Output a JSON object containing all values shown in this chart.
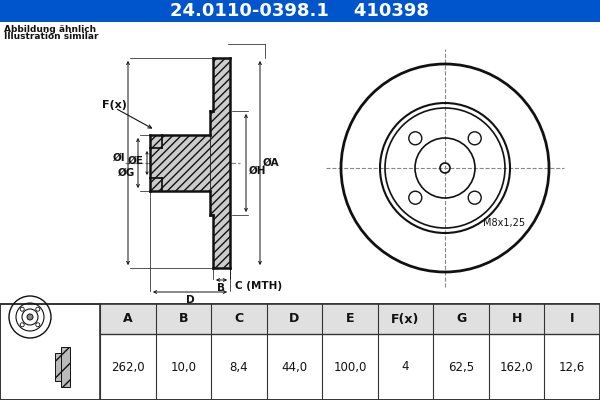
{
  "title_part": "24.0110-0398.1",
  "title_code": "410398",
  "title_bg": "#0055cc",
  "title_fg": "#ffffff",
  "subtitle1": "Abbildung ähnlich",
  "subtitle2": "Illustration similar",
  "thread_note": "M8x1,25",
  "table_headers": [
    "A",
    "B",
    "C",
    "D",
    "E",
    "F(x)",
    "G",
    "H",
    "I"
  ],
  "table_values": [
    "262,0",
    "10,0",
    "8,4",
    "44,0",
    "100,0",
    "4",
    "62,5",
    "162,0",
    "12,6"
  ],
  "bg_color": "#ffffff",
  "dc": "#111111",
  "dim_color": "#111111",
  "center_line_color": "#888888",
  "hatch_fc": "#cccccc",
  "table_header_bg": "#e0e0e0",
  "table_border": "#333333",
  "crosshair_color": "#888888"
}
